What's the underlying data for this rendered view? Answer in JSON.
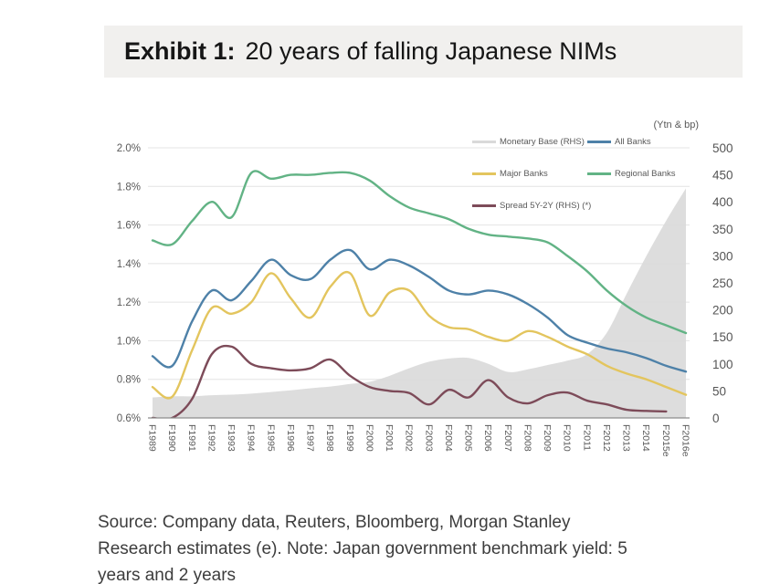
{
  "exhibit": {
    "label": "Exhibit 1:",
    "title": "20 years of falling Japanese NIMs"
  },
  "chart_data": {
    "type": "line",
    "title": "20 years of falling Japanese NIMs",
    "unit_note": "(Ytn & bp)",
    "grid": "horizontal",
    "legend_position": "top-right-inside",
    "categories": [
      "F1989",
      "F1990",
      "F1991",
      "F1992",
      "F1993",
      "F1994",
      "F1995",
      "F1996",
      "F1997",
      "F1998",
      "F1999",
      "F2000",
      "F2001",
      "F2002",
      "F2003",
      "F2004",
      "F2005",
      "F2006",
      "F2007",
      "F2008",
      "F2009",
      "F2010",
      "F2011",
      "F2012",
      "F2013",
      "F2014",
      "F2015e",
      "F2016e"
    ],
    "left_axis": {
      "min": 0.6,
      "max": 2.0,
      "ticks": [
        "2.0%",
        "1.8%",
        "1.6%",
        "1.4%",
        "1.2%",
        "1.0%",
        "0.8%",
        "0.6%"
      ],
      "tick_values": [
        2.0,
        1.8,
        1.6,
        1.4,
        1.2,
        1.0,
        0.8,
        0.6
      ]
    },
    "right_axis": {
      "min": 0,
      "max": 500,
      "ticks": [
        "500",
        "450",
        "400",
        "350",
        "300",
        "250",
        "200",
        "150",
        "100",
        "50",
        "0"
      ],
      "tick_values": [
        500,
        450,
        400,
        350,
        300,
        250,
        200,
        150,
        100,
        50,
        0
      ]
    },
    "series": [
      {
        "name": "Monetary Base (RHS)",
        "type": "area",
        "axis": "right",
        "color": "#d9d9d9",
        "values": [
          38,
          40,
          40,
          42,
          43,
          45,
          48,
          51,
          55,
          58,
          63,
          67,
          78,
          92,
          104,
          110,
          111,
          100,
          85,
          90,
          98,
          106,
          118,
          158,
          230,
          300,
          365,
          425
        ]
      },
      {
        "name": "Regional Banks",
        "type": "line",
        "axis": "left",
        "color": "#62b385",
        "values": [
          1.52,
          1.5,
          1.62,
          1.72,
          1.64,
          1.87,
          1.84,
          1.86,
          1.86,
          1.87,
          1.87,
          1.83,
          1.75,
          1.69,
          1.66,
          1.63,
          1.58,
          1.55,
          1.54,
          1.53,
          1.51,
          1.44,
          1.36,
          1.26,
          1.18,
          1.12,
          1.08,
          1.04
        ]
      },
      {
        "name": "All Banks",
        "type": "line",
        "axis": "left",
        "color": "#4e81a8",
        "values": [
          0.92,
          0.87,
          1.1,
          1.26,
          1.21,
          1.31,
          1.42,
          1.34,
          1.32,
          1.42,
          1.47,
          1.37,
          1.42,
          1.39,
          1.33,
          1.26,
          1.24,
          1.26,
          1.24,
          1.19,
          1.12,
          1.03,
          0.99,
          0.96,
          0.94,
          0.91,
          0.87,
          0.84
        ]
      },
      {
        "name": "Major Banks",
        "type": "line",
        "axis": "left",
        "color": "#e3c55e",
        "values": [
          0.76,
          0.71,
          0.95,
          1.17,
          1.14,
          1.2,
          1.35,
          1.22,
          1.12,
          1.28,
          1.35,
          1.13,
          1.25,
          1.26,
          1.13,
          1.07,
          1.06,
          1.02,
          1.0,
          1.05,
          1.02,
          0.97,
          0.93,
          0.87,
          0.83,
          0.8,
          0.76,
          0.72
        ]
      },
      {
        "name": "Spread 5Y-2Y (RHS) (*)",
        "type": "line",
        "axis": "right",
        "color": "#7d4b59",
        "values": [
          0,
          0,
          35,
          118,
          132,
          100,
          92,
          88,
          92,
          108,
          78,
          57,
          50,
          46,
          25,
          52,
          38,
          70,
          38,
          27,
          42,
          47,
          32,
          25,
          15,
          13,
          12,
          null
        ]
      }
    ],
    "legend_rows": [
      [
        "Monetary Base (RHS)",
        "All Banks"
      ],
      [
        "Major Banks",
        "Regional Banks"
      ],
      [
        "Spread 5Y-2Y (RHS) (*)"
      ]
    ]
  },
  "source_note": {
    "lines": [
      "Source: Company data, Reuters, Bloomberg, Morgan Stanley",
      "Research estimates (e). Note: Japan government benchmark yield: 5",
      "years and 2 years"
    ]
  }
}
